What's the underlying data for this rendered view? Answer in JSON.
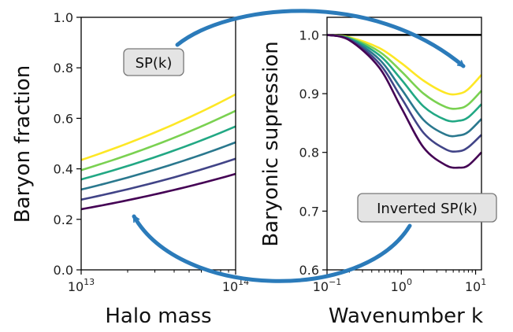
{
  "colors": {
    "series": [
      "#fde725",
      "#7ad151",
      "#22a884",
      "#2a788e",
      "#414487",
      "#440154"
    ],
    "arrow": "#2b7bba",
    "reference": "#000000"
  },
  "chart_data": [
    {
      "type": "line",
      "xlabel": "Halo mass",
      "ylabel": "Baryon fraction",
      "xscale": "log",
      "xlim": [
        10000000000000.0,
        100000000000000.0
      ],
      "ylim": [
        0.0,
        1.0
      ],
      "x_ticks": [
        {
          "value": 10000000000000.0,
          "base": "10",
          "exp": "13"
        },
        {
          "value": 100000000000000.0,
          "base": "10",
          "exp": "14"
        }
      ],
      "y_ticks": [
        {
          "value": 0.0,
          "label": "0.0"
        },
        {
          "value": 0.2,
          "label": "0.2"
        },
        {
          "value": 0.4,
          "label": "0.4"
        },
        {
          "value": 0.6,
          "label": "0.6"
        },
        {
          "value": 0.8,
          "label": "0.8"
        },
        {
          "value": 1.0,
          "label": "1.0"
        }
      ],
      "grid": false,
      "series": [
        {
          "x": [
            10000000000000.0,
            100000000000000.0
          ],
          "y": [
            0.435,
            0.695
          ]
        },
        {
          "x": [
            10000000000000.0,
            100000000000000.0
          ],
          "y": [
            0.395,
            0.63
          ]
        },
        {
          "x": [
            10000000000000.0,
            100000000000000.0
          ],
          "y": [
            0.358,
            0.568
          ]
        },
        {
          "x": [
            10000000000000.0,
            100000000000000.0
          ],
          "y": [
            0.318,
            0.505
          ]
        },
        {
          "x": [
            10000000000000.0,
            100000000000000.0
          ],
          "y": [
            0.278,
            0.44
          ]
        },
        {
          "x": [
            10000000000000.0,
            100000000000000.0
          ],
          "y": [
            0.24,
            0.38
          ]
        }
      ]
    },
    {
      "type": "line",
      "xlabel": "Wavenumber k",
      "ylabel": "Baryonic supression",
      "xscale": "log",
      "xlim": [
        0.1,
        12
      ],
      "ylim": [
        0.6,
        1.03
      ],
      "x_ticks": [
        {
          "value": 0.1,
          "base": "10",
          "exp": "−1"
        },
        {
          "value": 1,
          "base": "10",
          "exp": "0"
        },
        {
          "value": 10,
          "base": "10",
          "exp": "1"
        }
      ],
      "y_ticks": [
        {
          "value": 0.6,
          "label": "0.6"
        },
        {
          "value": 0.7,
          "label": "0.7"
        },
        {
          "value": 0.8,
          "label": "0.8"
        },
        {
          "value": 0.9,
          "label": "0.9"
        },
        {
          "value": 1.0,
          "label": "1.0"
        }
      ],
      "grid": false,
      "reference_line": {
        "y": 1.0
      },
      "series": [
        {
          "x": [
            0.1,
            0.2,
            0.5,
            1,
            2,
            4,
            6,
            8,
            12
          ],
          "y": [
            1.0,
            0.996,
            0.978,
            0.952,
            0.922,
            0.901,
            0.9,
            0.908,
            0.932
          ]
        },
        {
          "x": [
            0.1,
            0.2,
            0.5,
            1,
            2,
            4,
            6,
            8,
            12
          ],
          "y": [
            1.0,
            0.995,
            0.972,
            0.938,
            0.9,
            0.877,
            0.875,
            0.882,
            0.905
          ]
        },
        {
          "x": [
            0.1,
            0.2,
            0.5,
            1,
            2,
            4,
            6,
            8,
            12
          ],
          "y": [
            1.0,
            0.994,
            0.966,
            0.924,
            0.878,
            0.855,
            0.854,
            0.86,
            0.882
          ]
        },
        {
          "x": [
            0.1,
            0.2,
            0.5,
            1,
            2,
            4,
            6,
            8,
            12
          ],
          "y": [
            1.0,
            0.993,
            0.959,
            0.908,
            0.855,
            0.83,
            0.829,
            0.835,
            0.857
          ]
        },
        {
          "x": [
            0.1,
            0.2,
            0.5,
            1,
            2,
            4,
            6,
            8,
            12
          ],
          "y": [
            1.0,
            0.992,
            0.952,
            0.893,
            0.833,
            0.805,
            0.802,
            0.809,
            0.83
          ]
        },
        {
          "x": [
            0.1,
            0.2,
            0.5,
            1,
            2,
            4,
            6,
            8,
            12
          ],
          "y": [
            1.0,
            0.991,
            0.945,
            0.876,
            0.808,
            0.778,
            0.774,
            0.778,
            0.8
          ]
        }
      ]
    }
  ],
  "annotations": {
    "forward": "SP(k)",
    "inverse": "Inverted SP(k)"
  }
}
